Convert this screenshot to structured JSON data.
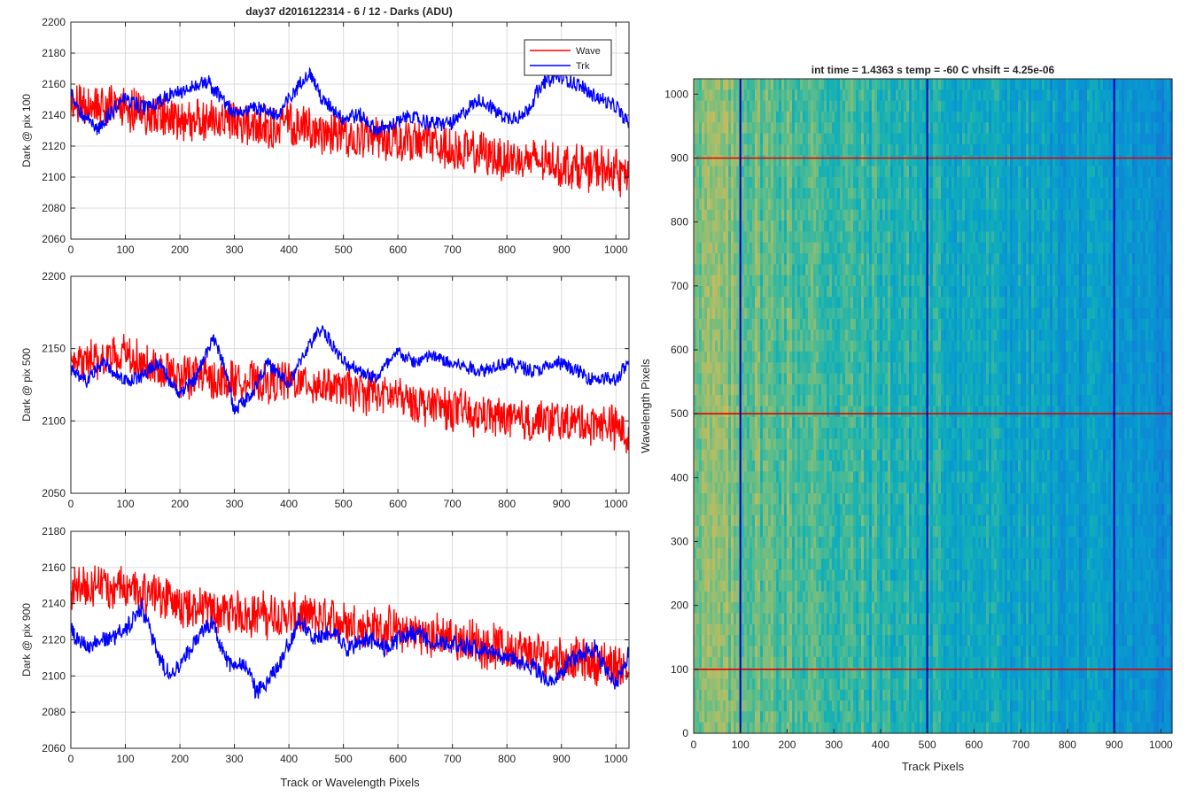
{
  "figure_title": "day37 d2016122314 - 6 / 12 - Darks (ADU)",
  "chart_data": [
    {
      "type": "line",
      "ylabel": "Dark @ pix 100",
      "xlabel": "",
      "xlim": [
        0,
        1024
      ],
      "ylim": [
        2060,
        2200
      ],
      "xticks": [
        0,
        100,
        200,
        300,
        400,
        500,
        600,
        700,
        800,
        900,
        1000
      ],
      "yticks": [
        2060,
        2080,
        2100,
        2120,
        2140,
        2160,
        2180,
        2200
      ],
      "grid": true,
      "legend": {
        "placement": "top-right",
        "entries": [
          "Wave",
          "Trk"
        ]
      },
      "series": [
        {
          "name": "Wave",
          "color": "#ff0000",
          "x": [
            0,
            50,
            100,
            150,
            200,
            250,
            300,
            350,
            400,
            450,
            500,
            550,
            600,
            650,
            700,
            750,
            800,
            850,
            900,
            950,
            1000,
            1024
          ],
          "values": [
            2145,
            2148,
            2144,
            2140,
            2136,
            2137,
            2135,
            2132,
            2133,
            2130,
            2128,
            2126,
            2125,
            2122,
            2118,
            2115,
            2112,
            2110,
            2108,
            2106,
            2104,
            2100
          ],
          "noise": 14
        },
        {
          "name": "Trk",
          "color": "#0000ff",
          "x": [
            0,
            20,
            50,
            80,
            100,
            130,
            160,
            200,
            250,
            280,
            300,
            340,
            380,
            420,
            440,
            460,
            500,
            530,
            560,
            600,
            620,
            650,
            700,
            750,
            800,
            830,
            870,
            900,
            950,
            1000,
            1024
          ],
          "values": [
            2155,
            2140,
            2130,
            2145,
            2150,
            2145,
            2148,
            2155,
            2162,
            2150,
            2140,
            2145,
            2140,
            2160,
            2168,
            2150,
            2138,
            2140,
            2130,
            2135,
            2140,
            2135,
            2135,
            2150,
            2138,
            2140,
            2162,
            2165,
            2155,
            2145,
            2135
          ],
          "noise": 5
        }
      ]
    },
    {
      "type": "line",
      "ylabel": "Dark @ pix 500",
      "xlabel": "",
      "xlim": [
        0,
        1024
      ],
      "ylim": [
        2050,
        2200
      ],
      "xticks": [
        0,
        100,
        200,
        300,
        400,
        500,
        600,
        700,
        800,
        900,
        1000
      ],
      "yticks": [
        2050,
        2100,
        2150,
        2200
      ],
      "grid": true,
      "series": [
        {
          "name": "Wave",
          "color": "#ff0000",
          "x": [
            0,
            50,
            100,
            150,
            200,
            250,
            300,
            350,
            400,
            450,
            500,
            550,
            600,
            650,
            700,
            750,
            800,
            850,
            900,
            950,
            1000,
            1024
          ],
          "values": [
            2140,
            2142,
            2145,
            2138,
            2132,
            2130,
            2128,
            2126,
            2128,
            2125,
            2122,
            2120,
            2116,
            2112,
            2108,
            2104,
            2102,
            2100,
            2100,
            2098,
            2096,
            2090
          ],
          "noise": 14
        },
        {
          "name": "Trk",
          "color": "#0000ff",
          "x": [
            0,
            30,
            60,
            100,
            130,
            160,
            200,
            230,
            260,
            280,
            300,
            330,
            360,
            400,
            430,
            460,
            500,
            530,
            560,
            600,
            630,
            660,
            700,
            750,
            800,
            850,
            900,
            950,
            1000,
            1024
          ],
          "values": [
            2135,
            2128,
            2140,
            2128,
            2130,
            2140,
            2118,
            2130,
            2158,
            2140,
            2108,
            2118,
            2140,
            2125,
            2148,
            2165,
            2140,
            2135,
            2130,
            2148,
            2140,
            2145,
            2140,
            2135,
            2140,
            2135,
            2140,
            2130,
            2128,
            2140
          ],
          "noise": 5
        }
      ]
    },
    {
      "type": "line",
      "ylabel": "Dark @ pix 900",
      "xlabel": "Track or Wavelength Pixels",
      "xlim": [
        0,
        1024
      ],
      "ylim": [
        2060,
        2180
      ],
      "xticks": [
        0,
        100,
        200,
        300,
        400,
        500,
        600,
        700,
        800,
        900,
        1000
      ],
      "yticks": [
        2060,
        2080,
        2100,
        2120,
        2140,
        2160,
        2180
      ],
      "grid": true,
      "series": [
        {
          "name": "Wave",
          "color": "#ff0000",
          "x": [
            0,
            50,
            100,
            150,
            200,
            250,
            300,
            350,
            400,
            450,
            500,
            550,
            600,
            650,
            700,
            750,
            800,
            850,
            900,
            950,
            1000,
            1024
          ],
          "values": [
            2150,
            2150,
            2148,
            2145,
            2140,
            2136,
            2135,
            2134,
            2133,
            2132,
            2130,
            2127,
            2125,
            2123,
            2121,
            2118,
            2115,
            2112,
            2110,
            2108,
            2106,
            2105
          ],
          "noise": 12
        },
        {
          "name": "Trk",
          "color": "#0000ff",
          "x": [
            0,
            30,
            60,
            100,
            130,
            160,
            180,
            200,
            230,
            260,
            290,
            320,
            340,
            380,
            420,
            450,
            480,
            510,
            540,
            580,
            620,
            660,
            700,
            750,
            800,
            850,
            880,
            920,
            960,
            1000,
            1024
          ],
          "values": [
            2125,
            2115,
            2120,
            2125,
            2138,
            2112,
            2102,
            2105,
            2120,
            2130,
            2105,
            2108,
            2090,
            2105,
            2130,
            2120,
            2125,
            2115,
            2120,
            2115,
            2125,
            2120,
            2118,
            2115,
            2110,
            2105,
            2095,
            2110,
            2115,
            2095,
            2112
          ],
          "noise": 5
        }
      ]
    },
    {
      "type": "heatmap",
      "title": "int time = 1.4363 s    temp = -60 C    vhsift = 4.25e-06",
      "xlabel": "Track Pixels",
      "ylabel": "Wavelength Pixels",
      "xlim": [
        0,
        1024
      ],
      "ylim": [
        0,
        1024
      ],
      "xticks": [
        0,
        100,
        200,
        300,
        400,
        500,
        600,
        700,
        800,
        900,
        1000
      ],
      "yticks": [
        0,
        100,
        200,
        300,
        400,
        500,
        600,
        700,
        800,
        900,
        1000
      ],
      "colormap": "parula",
      "value_trend_left_to_right": {
        "left": 0.72,
        "right": 0.38
      },
      "overlay_lines": {
        "horizontal_red_at": [
          100,
          500,
          900
        ],
        "vertical_blue_at": [
          100,
          500,
          900
        ],
        "red": "#e00000",
        "blue": "#0000c0"
      }
    }
  ]
}
